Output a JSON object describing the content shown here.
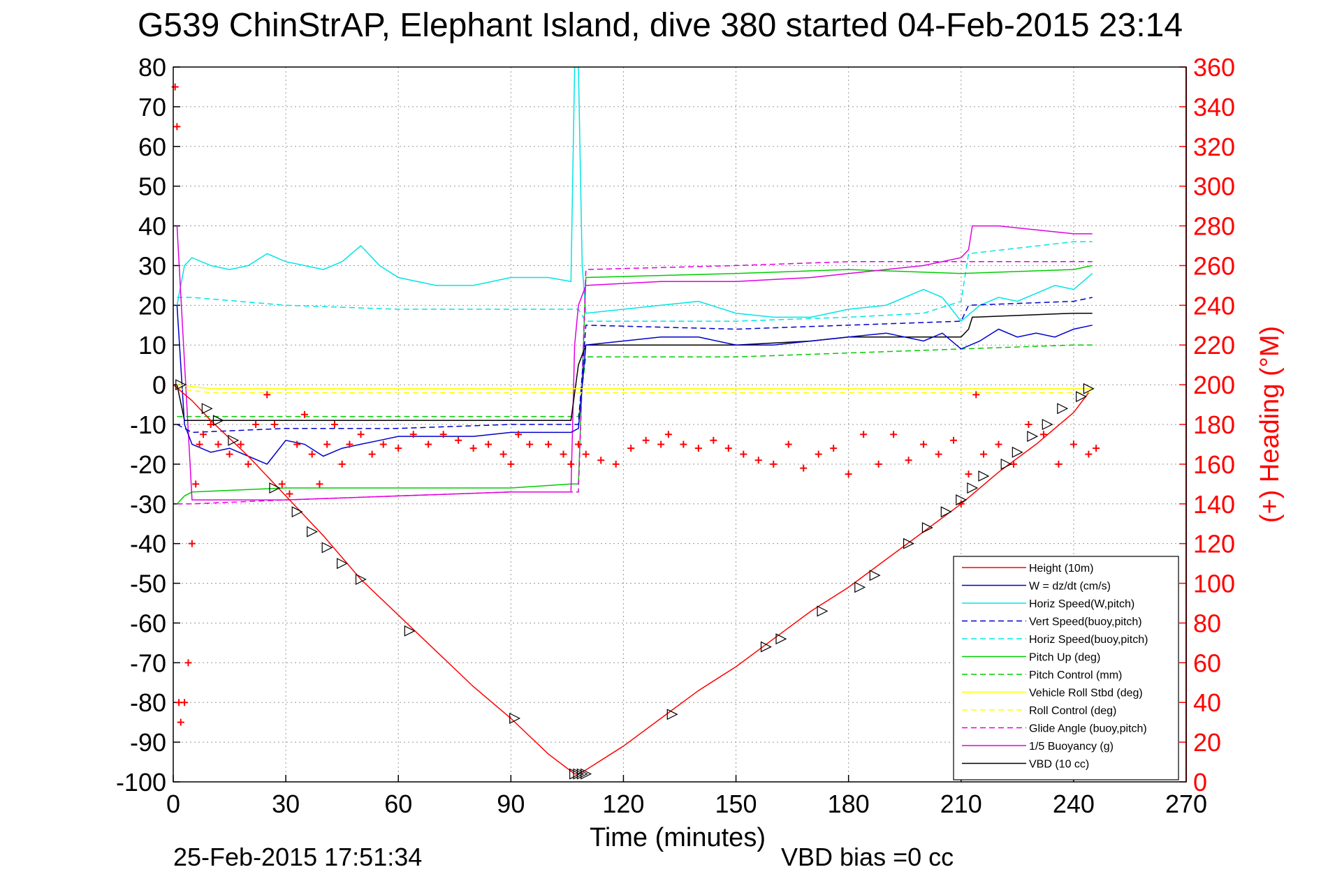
{
  "chart_data": {
    "type": "line",
    "title": "G539 ChinStrAP, Elephant Island, dive 380 started 04-Feb-2015 23:14",
    "xlabel": "Time (minutes)",
    "ylabel_right": "(+) Heading (°M)",
    "footer_left": "25-Feb-2015 17:51:34",
    "footer_right": "VBD bias =0 cc",
    "xlim": [
      0,
      270
    ],
    "ylim": [
      -100,
      80
    ],
    "y2lim": [
      0,
      360
    ],
    "xticks": [
      0,
      30,
      60,
      90,
      120,
      150,
      180,
      210,
      240,
      270
    ],
    "yticks": [
      80,
      70,
      60,
      50,
      40,
      30,
      20,
      10,
      0,
      -10,
      -20,
      -30,
      -40,
      -50,
      -60,
      -70,
      -80,
      -90,
      -100
    ],
    "y2ticks": [
      360,
      340,
      320,
      300,
      280,
      260,
      240,
      220,
      200,
      180,
      160,
      140,
      120,
      100,
      80,
      60,
      40,
      20,
      0
    ],
    "grid": true,
    "legend_position": "bottom-right",
    "colors": {
      "height": "#ff0000",
      "w": "#0000cc",
      "horiz": "#00e5e5",
      "pitch": "#00cc00",
      "roll": "#ffff00",
      "glide": "#e000e0",
      "vbd": "#000000",
      "heading": "#ff0000",
      "right_axis": "#ff0000"
    },
    "series": [
      {
        "name": "Height (10m)",
        "style": "solid",
        "color": "#ff0000",
        "x": [
          0,
          5,
          10,
          20,
          30,
          40,
          50,
          60,
          70,
          80,
          90,
          100,
          107,
          108,
          110,
          120,
          130,
          140,
          150,
          160,
          170,
          180,
          190,
          200,
          210,
          220,
          230,
          240,
          244
        ],
        "y": [
          0,
          -4,
          -9,
          -18,
          -28,
          -38,
          -49,
          -58,
          -67,
          -76,
          -84,
          -93,
          -98,
          -98,
          -97,
          -91,
          -84,
          -77,
          -71,
          -64,
          -57,
          -51,
          -44,
          -37,
          -30,
          -22,
          -15,
          -7,
          -2
        ]
      },
      {
        "name": "W = dz/dt (cm/s)",
        "style": "solid",
        "color": "#0000cc",
        "x": [
          1,
          3,
          5,
          10,
          15,
          20,
          25,
          30,
          35,
          40,
          45,
          50,
          55,
          60,
          70,
          80,
          90,
          100,
          106,
          108,
          110,
          120,
          130,
          140,
          150,
          160,
          170,
          180,
          190,
          200,
          205,
          210,
          215,
          220,
          225,
          230,
          235,
          240,
          245
        ],
        "y": [
          20,
          -10,
          -15,
          -17,
          -16,
          -18,
          -20,
          -14,
          -15,
          -18,
          -16,
          -15,
          -14,
          -13,
          -13,
          -13,
          -12,
          -12,
          -12,
          -11,
          10,
          11,
          12,
          12,
          10,
          10,
          11,
          12,
          13,
          11,
          13,
          9,
          11,
          14,
          12,
          13,
          12,
          14,
          15
        ]
      },
      {
        "name": "Horiz Speed(W,pitch)",
        "style": "solid",
        "color": "#00e5e5",
        "x": [
          1,
          3,
          5,
          10,
          15,
          20,
          25,
          30,
          35,
          40,
          45,
          50,
          55,
          60,
          70,
          80,
          90,
          100,
          106,
          107,
          108,
          109,
          110,
          120,
          130,
          140,
          150,
          160,
          170,
          180,
          190,
          200,
          205,
          210,
          215,
          220,
          225,
          230,
          235,
          240,
          245
        ],
        "y": [
          20,
          30,
          32,
          30,
          29,
          30,
          33,
          31,
          30,
          29,
          31,
          35,
          30,
          27,
          25,
          25,
          27,
          27,
          26,
          80,
          80,
          30,
          18,
          19,
          20,
          21,
          18,
          17,
          17,
          19,
          20,
          24,
          22,
          16,
          20,
          22,
          21,
          23,
          25,
          24,
          28
        ]
      },
      {
        "name": "Vert Speed(buoy,pitch)",
        "style": "dash",
        "color": "#0000cc",
        "x": [
          1,
          5,
          30,
          60,
          90,
          106,
          108,
          110,
          150,
          180,
          210,
          212,
          240,
          245
        ],
        "y": [
          -10,
          -12,
          -11,
          -11,
          -10,
          -10,
          -10,
          15,
          14,
          15,
          16,
          20,
          21,
          22
        ]
      },
      {
        "name": "Horiz Speed(buoy,pitch)",
        "style": "dash",
        "color": "#00e5e5",
        "x": [
          1,
          5,
          30,
          60,
          90,
          106,
          108,
          110,
          150,
          180,
          200,
          210,
          212,
          240,
          245
        ],
        "y": [
          22,
          22,
          20,
          19,
          19,
          19,
          19,
          16,
          16,
          17,
          18,
          21,
          33,
          36,
          36
        ]
      },
      {
        "name": "Pitch Up (deg)",
        "style": "solid",
        "color": "#00cc00",
        "x": [
          1,
          3,
          5,
          30,
          60,
          90,
          106,
          108,
          110,
          150,
          180,
          210,
          240,
          245
        ],
        "y": [
          -30,
          -28,
          -27,
          -26,
          -26,
          -26,
          -25,
          -25,
          27,
          28,
          29,
          28,
          29,
          30
        ]
      },
      {
        "name": "Pitch Control (mm)",
        "style": "dash",
        "color": "#00cc00",
        "x": [
          1,
          5,
          30,
          60,
          90,
          106,
          108,
          110,
          150,
          180,
          210,
          240,
          245
        ],
        "y": [
          -8,
          -8,
          -8,
          -8,
          -8,
          -8,
          -8,
          7,
          7,
          8,
          9,
          10,
          10
        ]
      },
      {
        "name": "Vehicle Roll Stbd (deg)",
        "style": "solid",
        "color": "#ffff00",
        "x": [
          1,
          10,
          30,
          60,
          90,
          106,
          108,
          110,
          150,
          180,
          210,
          240,
          245
        ],
        "y": [
          0,
          -1,
          -1,
          -1,
          -1,
          -1,
          -1,
          -1,
          -1,
          -1,
          -1,
          -1,
          -1
        ]
      },
      {
        "name": "Roll Control (deg)",
        "style": "dash",
        "color": "#ffff00",
        "x": [
          1,
          10,
          30,
          60,
          90,
          106,
          108,
          110,
          150,
          180,
          210,
          240,
          245
        ],
        "y": [
          -1,
          -2,
          -2,
          -2,
          -2,
          -2,
          -2,
          -2,
          -2,
          -2,
          -2,
          -2,
          -2
        ]
      },
      {
        "name": "Glide Angle (buoy,pitch)",
        "style": "dash",
        "color": "#e000e0",
        "x": [
          1,
          5,
          30,
          60,
          90,
          106,
          108,
          110,
          150,
          180,
          210,
          240,
          245
        ],
        "y": [
          -30,
          -30,
          -29,
          -28,
          -27,
          -27,
          -27,
          29,
          30,
          31,
          31,
          31,
          31
        ]
      },
      {
        "name": "1/5 Buoyancy (g)",
        "style": "solid",
        "color": "#e000e0",
        "x": [
          1,
          5,
          30,
          60,
          90,
          106,
          107,
          108,
          110,
          130,
          150,
          170,
          190,
          200,
          210,
          212,
          213,
          220,
          240,
          245
        ],
        "y": [
          40,
          -29,
          -29,
          -28,
          -27,
          -27,
          10,
          20,
          25,
          26,
          26,
          27,
          29,
          30,
          32,
          34,
          40,
          40,
          38,
          38
        ]
      },
      {
        "name": "VBD (10 cc)",
        "style": "solid",
        "color": "#000000",
        "x": [
          1,
          3,
          5,
          30,
          60,
          90,
          106,
          108,
          110,
          130,
          150,
          170,
          180,
          200,
          210,
          212,
          213,
          240,
          245
        ],
        "y": [
          0,
          -9,
          -9,
          -9,
          -9,
          -9,
          -9,
          5,
          10,
          10,
          10,
          11,
          12,
          12,
          12,
          14,
          17,
          18,
          18
        ]
      }
    ],
    "heading_series": {
      "name": "(+) Heading",
      "axis": "right",
      "x": [
        0.5,
        1,
        1.5,
        2,
        3,
        4,
        5,
        6,
        7,
        8,
        10,
        12,
        15,
        18,
        20,
        22,
        25,
        27,
        29,
        31,
        33,
        35,
        37,
        39,
        41,
        43,
        45,
        47,
        50,
        53,
        56,
        60,
        64,
        68,
        72,
        76,
        80,
        84,
        88,
        90,
        92,
        95,
        100,
        104,
        106,
        108,
        110,
        114,
        118,
        122,
        126,
        130,
        132,
        136,
        140,
        144,
        148,
        152,
        156,
        160,
        164,
        168,
        172,
        176,
        180,
        184,
        188,
        192,
        196,
        200,
        204,
        208,
        210,
        212,
        214,
        216,
        220,
        224,
        228,
        232,
        236,
        240,
        244,
        246
      ],
      "y": [
        350,
        330,
        40,
        30,
        40,
        60,
        120,
        150,
        170,
        175,
        180,
        170,
        165,
        170,
        160,
        180,
        195,
        180,
        150,
        145,
        170,
        185,
        165,
        150,
        170,
        180,
        160,
        170,
        175,
        165,
        170,
        168,
        175,
        170,
        175,
        172,
        168,
        170,
        165,
        160,
        175,
        170,
        170,
        165,
        160,
        170,
        165,
        162,
        160,
        168,
        172,
        170,
        175,
        170,
        168,
        172,
        168,
        165,
        162,
        160,
        170,
        158,
        165,
        168,
        155,
        175,
        160,
        175,
        162,
        170,
        165,
        172,
        140,
        155,
        195,
        165,
        170,
        160,
        180,
        175,
        160,
        170,
        165,
        168
      ]
    },
    "turn_markers": {
      "x": [
        2,
        9,
        12,
        16,
        27,
        33,
        37,
        41,
        45,
        50,
        63,
        91,
        107,
        108,
        109,
        110,
        133,
        158,
        162,
        173,
        183,
        187,
        196,
        201,
        206,
        210,
        213,
        216,
        222,
        225,
        229,
        233,
        237,
        242,
        244
      ],
      "y": [
        0,
        -6,
        -9,
        -14,
        -26,
        -32,
        -37,
        -41,
        -45,
        -49,
        -62,
        -84,
        -98,
        -98,
        -98,
        -98,
        -83,
        -66,
        -64,
        -57,
        -51,
        -48,
        -40,
        -36,
        -32,
        -29,
        -26,
        -23,
        -20,
        -17,
        -13,
        -10,
        -6,
        -3,
        -1
      ]
    }
  }
}
